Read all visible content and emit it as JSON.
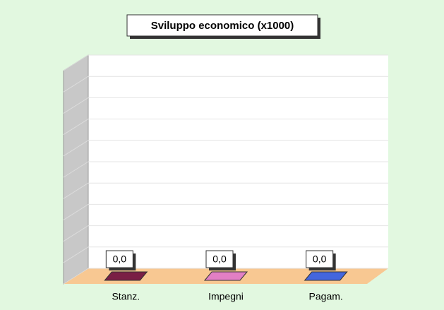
{
  "chart_data": {
    "type": "bar3d",
    "title": "Sviluppo economico (x1000)",
    "categories": [
      "Stanz.",
      "Impegni",
      "Pagam."
    ],
    "values": [
      0,
      0,
      0
    ],
    "value_labels": [
      "0,0",
      "0,0",
      "0,0"
    ],
    "colors": [
      "#7a1f45",
      "#e27fc4",
      "#4466dd"
    ],
    "ylim": [
      0,
      10
    ],
    "yticks": [
      0,
      1,
      2,
      3,
      4,
      5,
      6,
      7,
      8,
      9,
      10
    ],
    "grid": true
  }
}
